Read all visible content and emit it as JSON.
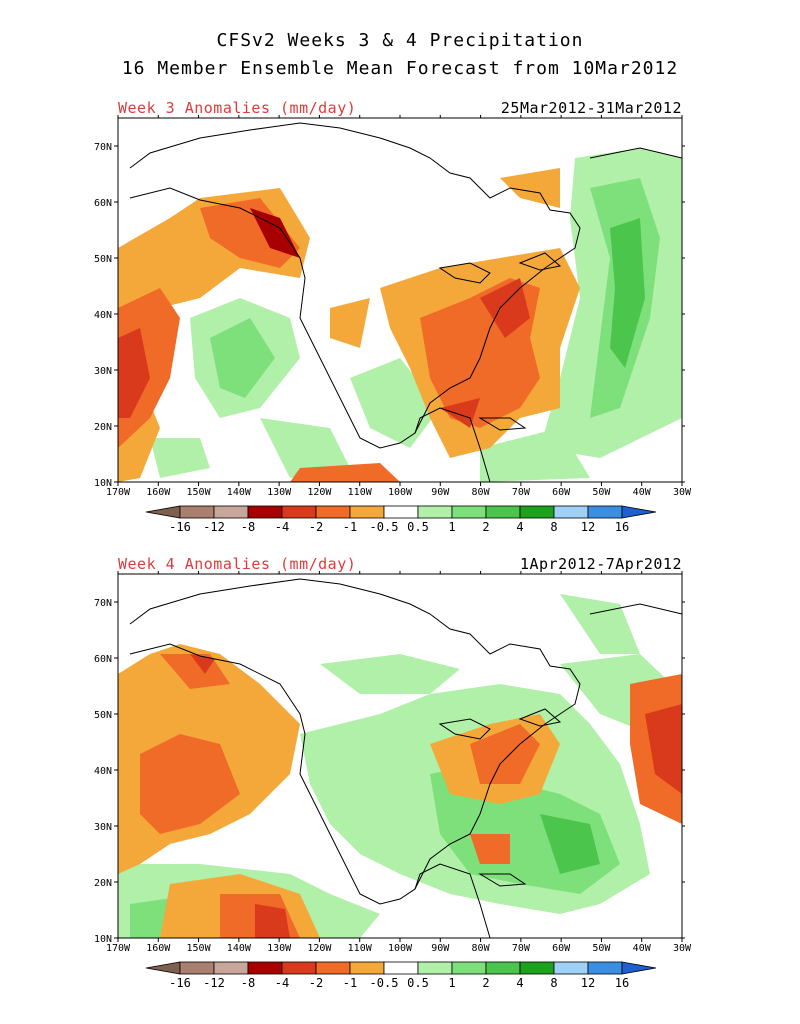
{
  "titles": {
    "line1": "CFSv2 Weeks 3 & 4 Precipitation",
    "line2": "16 Member Ensemble Mean Forecast from 10Mar2012"
  },
  "panels": [
    {
      "title": "Week 3 Anomalies (mm/day)",
      "dates": "25Mar2012-31Mar2012"
    },
    {
      "title": "Week 4 Anomalies (mm/day)",
      "dates": "1Apr2012-7Apr2012"
    }
  ],
  "axes": {
    "lon_labels": [
      "170W",
      "160W",
      "150W",
      "140W",
      "130W",
      "120W",
      "110W",
      "100W",
      "90W",
      "80W",
      "70W",
      "60W",
      "50W",
      "40W",
      "30W"
    ],
    "lat_labels": [
      "70N",
      "60N",
      "50N",
      "40N",
      "30N",
      "20N",
      "10N"
    ]
  },
  "colorbar": {
    "labels": [
      "-16",
      "-12",
      "-8",
      "-4",
      "-2",
      "-1",
      "-0.5",
      "0.5",
      "1",
      "2",
      "4",
      "8",
      "12",
      "16"
    ],
    "colors": [
      "#7f5f4f",
      "#a97f6f",
      "#c8a79a",
      "#a80000",
      "#d93a1b",
      "#f06a28",
      "#f5a83a",
      "#ffffff",
      "#b0f0a8",
      "#7ee07a",
      "#4cc54c",
      "#1ea21e",
      "#9fd0f5",
      "#3a8fe0",
      "#1f5fcf"
    ]
  }
}
